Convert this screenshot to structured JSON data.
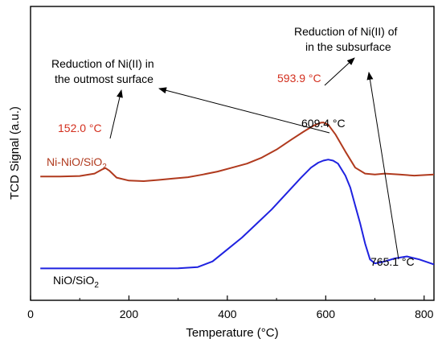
{
  "chart_data": {
    "type": "line",
    "xlabel": "Temperature (°C)",
    "ylabel": "TCD Signal (a.u.)",
    "xlim": [
      0,
      820
    ],
    "ylim": [
      0,
      100
    ],
    "xticks": [
      0,
      200,
      400,
      600,
      800
    ],
    "series": [
      {
        "name": "Ni-NiO/SiO2",
        "label_main": "Ni-NiO/SiO",
        "label_sub": "2",
        "color": "#b03a1e",
        "x": [
          20,
          60,
          100,
          130,
          145,
          152,
          160,
          175,
          200,
          230,
          260,
          290,
          320,
          350,
          380,
          410,
          440,
          470,
          500,
          530,
          555,
          575,
          590,
          595,
          605,
          620,
          640,
          660,
          680,
          700,
          720,
          750,
          780,
          820
        ],
        "y": [
          53.5,
          53.5,
          53.8,
          55,
          57,
          57.8,
          56.5,
          53,
          51.5,
          51.2,
          51.8,
          52.5,
          53.2,
          54.5,
          56,
          58,
          60,
          63,
          67,
          72,
          76,
          79,
          80.5,
          80.6,
          79.5,
          74.5,
          66,
          58,
          55,
          54.5,
          55,
          54.5,
          54,
          54.5
        ]
      },
      {
        "name": "NiO/SiO2",
        "label_main": "NiO/SiO",
        "label_sub": "2",
        "color": "#1f22e0",
        "x": [
          20,
          100,
          200,
          300,
          340,
          370,
          400,
          430,
          460,
          490,
          520,
          550,
          570,
          585,
          595,
          605,
          615,
          625,
          640,
          650,
          660,
          670,
          680,
          690,
          700,
          710,
          720,
          740,
          765,
          790,
          820
        ],
        "y": [
          7.5,
          7.5,
          7.5,
          7.6,
          8.2,
          11,
          17,
          23,
          30,
          37,
          45,
          53,
          58,
          60.5,
          61.5,
          62,
          61.5,
          60,
          54,
          48,
          39,
          30,
          20,
          12,
          10,
          10.5,
          11,
          12.5,
          13.5,
          12,
          9.5
        ]
      }
    ],
    "annotations": [
      {
        "text": "152.0 °C",
        "color": "#d32f1e"
      },
      {
        "text": "593.9 °C",
        "color": "#d32f1e"
      },
      {
        "text": "609.4 °C",
        "color": "#000000"
      },
      {
        "text": "765.1 °C",
        "color": "#000000"
      },
      {
        "text": "Reduction of Ni(II) in",
        "color": "#000000"
      },
      {
        "text": "the outmost surface",
        "color": "#000000"
      },
      {
        "text": "Reduction of Ni(II) of",
        "color": "#000000"
      },
      {
        "text": "in the subsurface",
        "color": "#000000"
      }
    ]
  }
}
